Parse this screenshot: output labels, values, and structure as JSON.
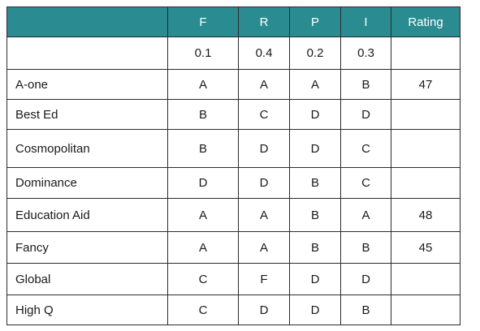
{
  "table": {
    "header": [
      "",
      "F",
      "R",
      "P",
      "I",
      "Rating"
    ],
    "weights": [
      "",
      "0.1",
      "0.4",
      "0.2",
      "0.3",
      ""
    ],
    "rows": [
      {
        "name": "A-one",
        "F": "A",
        "R": "A",
        "P": "A",
        "I": "B",
        "rating": "47"
      },
      {
        "name": "Best Ed",
        "F": "B",
        "R": "C",
        "P": "D",
        "I": "D",
        "rating": ""
      },
      {
        "name": "Cosmopolitan",
        "F": "B",
        "R": "D",
        "P": "D",
        "I": "C",
        "rating": ""
      },
      {
        "name": "Dominance",
        "F": "D",
        "R": "D",
        "P": "B",
        "I": "C",
        "rating": ""
      },
      {
        "name": "Education Aid",
        "F": "A",
        "R": "A",
        "P": "B",
        "I": "A",
        "rating": "48"
      },
      {
        "name": "Fancy",
        "F": "A",
        "R": "A",
        "P": "B",
        "I": "B",
        "rating": "45"
      },
      {
        "name": "Global",
        "F": "C",
        "R": "F",
        "P": "D",
        "I": "D",
        "rating": ""
      },
      {
        "name": "High Q",
        "F": "C",
        "R": "D",
        "P": "D",
        "I": "B",
        "rating": ""
      }
    ],
    "colors": {
      "header_bg": "#2a8c91",
      "header_text": "#ffffff",
      "border": "#2b2b2b"
    }
  }
}
